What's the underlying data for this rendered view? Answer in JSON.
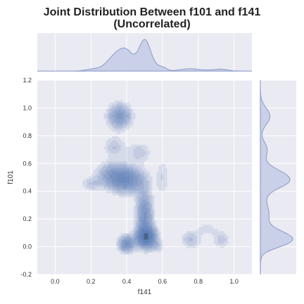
{
  "chart_data": {
    "type": "jointplot-kde",
    "title_lines": [
      "Joint Distribution Between f101 and f141",
      "(Uncorrelated)"
    ],
    "xlabel": "f141",
    "ylabel": "f101",
    "xlim": [
      -0.1,
      1.1
    ],
    "ylim": [
      -0.2,
      1.2
    ],
    "x_ticks": [
      0.0,
      0.2,
      0.4,
      0.6,
      0.8,
      1.0
    ],
    "y_ticks": [
      -0.2,
      0.0,
      0.2,
      0.4,
      0.6,
      0.8,
      1.0,
      1.2
    ],
    "grid": true,
    "colors": {
      "background": "#eaeaf2",
      "grid": "#ffffff",
      "fill": "#4c72b0",
      "marginal_fill": "#c5cde6",
      "marginal_line": "#8c9bc9"
    },
    "density_clusters": [
      {
        "x": 0.51,
        "y": 0.07,
        "sx": 0.035,
        "sy": 0.045,
        "w": 1.0
      },
      {
        "x": 0.5,
        "y": 0.22,
        "sx": 0.03,
        "sy": 0.12,
        "w": 0.5
      },
      {
        "x": 0.4,
        "y": 0.02,
        "sx": 0.03,
        "sy": 0.04,
        "w": 0.55
      },
      {
        "x": 0.4,
        "y": 0.48,
        "sx": 0.065,
        "sy": 0.06,
        "w": 0.55
      },
      {
        "x": 0.32,
        "y": 0.52,
        "sx": 0.06,
        "sy": 0.06,
        "w": 0.3
      },
      {
        "x": 0.2,
        "y": 0.45,
        "sx": 0.035,
        "sy": 0.035,
        "w": 0.15
      },
      {
        "x": 0.36,
        "y": 0.94,
        "sx": 0.045,
        "sy": 0.06,
        "w": 0.42
      },
      {
        "x": 0.33,
        "y": 0.72,
        "sx": 0.04,
        "sy": 0.05,
        "w": 0.17
      },
      {
        "x": 0.47,
        "y": 0.68,
        "sx": 0.045,
        "sy": 0.05,
        "w": 0.16
      },
      {
        "x": 0.6,
        "y": 0.5,
        "sx": 0.025,
        "sy": 0.1,
        "w": 0.12
      },
      {
        "x": 0.76,
        "y": 0.05,
        "sx": 0.04,
        "sy": 0.045,
        "w": 0.18
      },
      {
        "x": 0.93,
        "y": 0.05,
        "sx": 0.035,
        "sy": 0.045,
        "w": 0.15
      },
      {
        "x": 0.85,
        "y": 0.13,
        "sx": 0.04,
        "sy": 0.035,
        "w": 0.1
      },
      {
        "x": 0.7,
        "y": 0.25,
        "sx": 0.03,
        "sy": 0.04,
        "w": 0.07
      },
      {
        "x": 0.57,
        "y": 0.0,
        "sx": 0.03,
        "sy": 0.03,
        "w": 0.15
      }
    ],
    "contour_levels": [
      0.06,
      0.1,
      0.14,
      0.19,
      0.25,
      0.32,
      0.4,
      0.5,
      0.62,
      0.76,
      0.9
    ]
  }
}
